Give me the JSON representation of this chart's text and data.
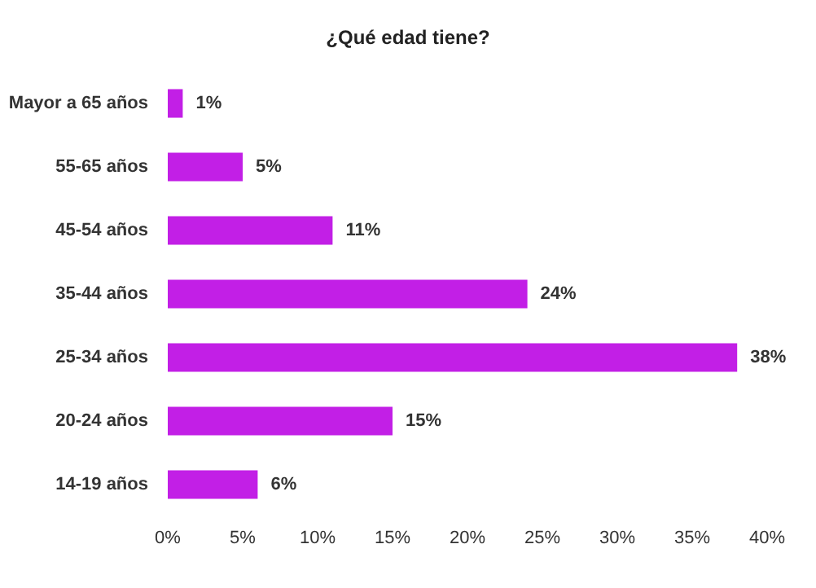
{
  "chart_data": {
    "type": "bar",
    "orientation": "horizontal",
    "title": "¿Qué edad tiene?",
    "categories": [
      "Mayor a 65 años",
      "55-65 años",
      "45-54 años",
      "35-44 años",
      "25-34 años",
      "20-24 años",
      "14-19 años"
    ],
    "values": [
      1,
      5,
      11,
      24,
      38,
      15,
      6
    ],
    "value_labels": [
      "1%",
      "5%",
      "11%",
      "24%",
      "38%",
      "15%",
      "6%"
    ],
    "color": "#c21fe6",
    "xlim": [
      0,
      40
    ],
    "xticks": [
      {
        "value": 0,
        "label": "0%"
      },
      {
        "value": 5,
        "label": "5%"
      },
      {
        "value": 10,
        "label": "10%"
      },
      {
        "value": 15,
        "label": "15%"
      },
      {
        "value": 20,
        "label": "20%"
      },
      {
        "value": 25,
        "label": "25%"
      },
      {
        "value": 30,
        "label": "30%"
      },
      {
        "value": 35,
        "label": "35%"
      },
      {
        "value": 40,
        "label": "40%"
      }
    ]
  }
}
